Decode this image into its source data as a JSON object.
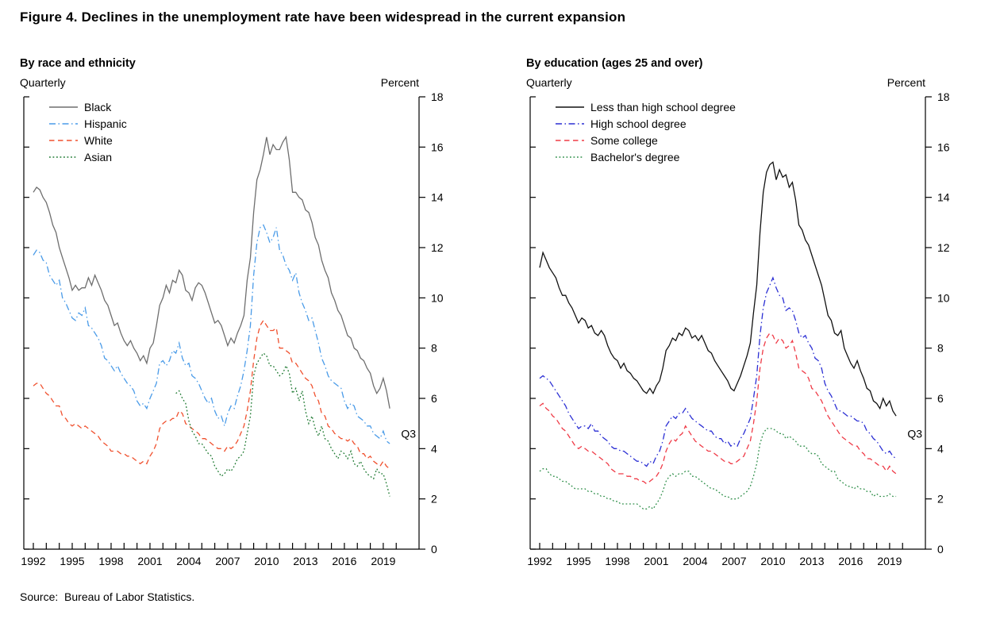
{
  "figure": {
    "title": "Figure 4. Declines in the unemployment rate have been widespread in the current expansion",
    "source": "Source:  Bureau of Labor Statistics."
  },
  "chart_data": [
    {
      "type": "line",
      "panel_title": "By race and ethnicity",
      "freq_label": "Quarterly",
      "unit_label": "Percent",
      "x_range": [
        1992,
        2020
      ],
      "x_tick_labels": [
        1992,
        1995,
        1998,
        2001,
        2004,
        2007,
        2010,
        2013,
        2016,
        2019
      ],
      "ylim": [
        0,
        18
      ],
      "y_tick_step": 2,
      "grid": false,
      "legend_position": "top-left",
      "annotation": {
        "label": "Q3",
        "value": 4.6
      },
      "series": [
        {
          "name": "Black",
          "color": "#6e6e6e",
          "style": "solid",
          "start": 1992.0,
          "step": 0.25,
          "values": [
            14.2,
            14.4,
            14.3,
            14.0,
            13.8,
            13.4,
            12.9,
            12.6,
            12.0,
            11.6,
            11.2,
            10.8,
            10.3,
            10.5,
            10.3,
            10.4,
            10.4,
            10.8,
            10.5,
            10.9,
            10.6,
            10.3,
            9.9,
            9.7,
            9.3,
            8.9,
            9.0,
            8.6,
            8.3,
            8.1,
            8.3,
            8.0,
            7.8,
            7.5,
            7.7,
            7.4,
            8.0,
            8.2,
            8.9,
            9.7,
            10.0,
            10.5,
            10.2,
            10.7,
            10.6,
            11.1,
            10.9,
            10.3,
            10.2,
            9.9,
            10.4,
            10.6,
            10.5,
            10.2,
            9.8,
            9.4,
            9.0,
            9.1,
            8.9,
            8.5,
            8.1,
            8.4,
            8.2,
            8.6,
            8.9,
            9.3,
            10.7,
            11.6,
            13.4,
            14.7,
            15.1,
            15.7,
            16.4,
            15.7,
            16.1,
            15.9,
            15.9,
            16.2,
            16.4,
            15.5,
            14.2,
            14.2,
            14.0,
            13.9,
            13.5,
            13.4,
            13.0,
            12.4,
            12.1,
            11.5,
            11.1,
            10.8,
            10.2,
            9.9,
            9.5,
            9.3,
            8.9,
            8.5,
            8.4,
            8.0,
            7.9,
            7.6,
            7.5,
            7.2,
            7.0,
            6.5,
            6.2,
            6.4,
            6.8,
            6.3,
            5.6
          ]
        },
        {
          "name": "Hispanic",
          "color": "#4a9be8",
          "style": "dashdot",
          "start": 1992.0,
          "step": 0.25,
          "values": [
            11.7,
            11.9,
            11.8,
            11.5,
            11.4,
            10.9,
            10.7,
            10.5,
            10.7,
            10.0,
            9.8,
            9.5,
            9.2,
            9.1,
            9.4,
            9.3,
            9.6,
            8.9,
            8.8,
            8.6,
            8.4,
            8.1,
            7.6,
            7.5,
            7.3,
            7.1,
            7.3,
            7.0,
            6.8,
            6.6,
            6.5,
            6.3,
            5.9,
            5.7,
            5.8,
            5.6,
            6.0,
            6.3,
            6.6,
            7.4,
            7.5,
            7.3,
            7.5,
            7.9,
            7.8,
            8.2,
            7.6,
            7.3,
            7.4,
            6.9,
            6.8,
            6.6,
            6.3,
            6.0,
            5.8,
            6.0,
            5.5,
            5.2,
            5.3,
            4.9,
            5.4,
            5.7,
            5.6,
            6.1,
            6.5,
            7.1,
            7.9,
            8.9,
            10.9,
            12.2,
            12.8,
            12.9,
            12.6,
            12.2,
            12.4,
            12.8,
            11.9,
            11.7,
            11.3,
            11.1,
            10.7,
            11.0,
            10.2,
            9.8,
            9.5,
            9.1,
            9.2,
            8.7,
            8.2,
            7.6,
            7.3,
            6.9,
            6.7,
            6.6,
            6.5,
            6.4,
            5.9,
            5.6,
            5.8,
            5.7,
            5.3,
            5.2,
            5.1,
            4.9,
            4.9,
            4.6,
            4.5,
            4.4,
            4.7,
            4.3,
            4.2
          ]
        },
        {
          "name": "White",
          "color": "#f0512f",
          "style": "dashed",
          "start": 1992.0,
          "step": 0.25,
          "values": [
            6.5,
            6.6,
            6.6,
            6.4,
            6.2,
            6.1,
            5.9,
            5.7,
            5.7,
            5.3,
            5.2,
            5.0,
            4.9,
            5.0,
            4.9,
            4.8,
            4.9,
            4.8,
            4.7,
            4.6,
            4.5,
            4.3,
            4.2,
            4.1,
            3.9,
            3.9,
            3.9,
            3.8,
            3.8,
            3.7,
            3.7,
            3.6,
            3.5,
            3.4,
            3.5,
            3.4,
            3.7,
            3.9,
            4.2,
            4.8,
            5.0,
            5.1,
            5.1,
            5.2,
            5.2,
            5.5,
            5.4,
            5.0,
            4.9,
            4.8,
            4.7,
            4.6,
            4.4,
            4.4,
            4.3,
            4.2,
            4.1,
            4.0,
            4.0,
            3.9,
            4.1,
            4.0,
            4.1,
            4.3,
            4.6,
            4.9,
            5.5,
            6.3,
            7.5,
            8.4,
            8.9,
            9.1,
            8.9,
            8.7,
            8.7,
            8.8,
            8.0,
            8.0,
            7.9,
            7.8,
            7.4,
            7.4,
            7.2,
            7.0,
            6.8,
            6.7,
            6.5,
            6.1,
            5.9,
            5.4,
            5.3,
            4.9,
            4.8,
            4.6,
            4.5,
            4.4,
            4.4,
            4.3,
            4.4,
            4.2,
            4.1,
            3.8,
            3.8,
            3.6,
            3.7,
            3.5,
            3.4,
            3.3,
            3.5,
            3.3,
            3.2
          ]
        },
        {
          "name": "Asian",
          "color": "#1f7a32",
          "style": "dotted",
          "start": 2003.0,
          "step": 0.25,
          "values": [
            6.2,
            6.3,
            6.0,
            5.8,
            5.1,
            4.7,
            4.5,
            4.2,
            4.2,
            4.0,
            3.8,
            3.7,
            3.3,
            3.1,
            2.9,
            3.0,
            3.2,
            3.1,
            3.3,
            3.6,
            3.7,
            3.9,
            4.6,
            5.3,
            6.9,
            7.4,
            7.6,
            7.8,
            7.7,
            7.3,
            7.3,
            7.1,
            6.9,
            7.0,
            7.3,
            7.0,
            6.2,
            6.4,
            5.9,
            6.3,
            5.5,
            5.0,
            5.3,
            4.8,
            4.5,
            4.9,
            4.4,
            4.3,
            4.0,
            3.8,
            3.6,
            3.9,
            3.8,
            3.6,
            3.9,
            3.4,
            3.3,
            3.5,
            3.2,
            3.0,
            2.9,
            2.8,
            3.2,
            3.0,
            3.0,
            2.6,
            2.1
          ]
        }
      ]
    },
    {
      "type": "line",
      "panel_title": "By education (ages 25 and over)",
      "freq_label": "Quarterly",
      "unit_label": "Percent",
      "x_range": [
        1992,
        2020
      ],
      "x_tick_labels": [
        1992,
        1995,
        1998,
        2001,
        2004,
        2007,
        2010,
        2013,
        2016,
        2019
      ],
      "ylim": [
        0,
        18
      ],
      "y_tick_step": 2,
      "grid": false,
      "legend_position": "top-left",
      "annotation": {
        "label": "Q3",
        "value": 4.6
      },
      "series": [
        {
          "name": "Less than high school degree",
          "color": "#111111",
          "style": "solid",
          "start": 1992.0,
          "step": 0.25,
          "values": [
            11.2,
            11.8,
            11.5,
            11.2,
            11.0,
            10.8,
            10.4,
            10.1,
            10.1,
            9.8,
            9.6,
            9.3,
            9.0,
            9.2,
            9.1,
            8.8,
            8.9,
            8.6,
            8.5,
            8.7,
            8.5,
            8.1,
            7.8,
            7.6,
            7.5,
            7.2,
            7.4,
            7.1,
            7.0,
            6.8,
            6.7,
            6.5,
            6.3,
            6.2,
            6.4,
            6.2,
            6.5,
            6.7,
            7.2,
            7.9,
            8.1,
            8.4,
            8.3,
            8.6,
            8.5,
            8.8,
            8.7,
            8.4,
            8.5,
            8.3,
            8.5,
            8.2,
            7.9,
            7.8,
            7.5,
            7.3,
            7.1,
            6.9,
            6.7,
            6.4,
            6.3,
            6.6,
            6.9,
            7.3,
            7.7,
            8.2,
            9.4,
            10.5,
            12.6,
            14.2,
            15.0,
            15.3,
            15.4,
            14.7,
            15.1,
            14.8,
            14.9,
            14.4,
            14.6,
            13.9,
            12.9,
            12.7,
            12.3,
            12.1,
            11.7,
            11.3,
            10.9,
            10.5,
            9.9,
            9.3,
            9.1,
            8.6,
            8.5,
            8.7,
            8.0,
            7.7,
            7.4,
            7.2,
            7.5,
            7.1,
            6.8,
            6.4,
            6.3,
            5.9,
            5.8,
            5.6,
            6.0,
            5.7,
            5.9,
            5.5,
            5.3
          ]
        },
        {
          "name": "High school degree",
          "color": "#2b2fd4",
          "style": "dashdot",
          "start": 1992.0,
          "step": 0.25,
          "values": [
            6.8,
            6.9,
            6.8,
            6.7,
            6.5,
            6.3,
            6.1,
            5.9,
            5.7,
            5.4,
            5.2,
            5.0,
            4.8,
            4.9,
            4.9,
            4.8,
            5.0,
            4.7,
            4.7,
            4.5,
            4.4,
            4.3,
            4.1,
            4.0,
            4.0,
            3.9,
            3.9,
            3.8,
            3.7,
            3.6,
            3.5,
            3.5,
            3.4,
            3.3,
            3.5,
            3.4,
            3.7,
            3.9,
            4.3,
            4.9,
            5.1,
            5.3,
            5.2,
            5.4,
            5.4,
            5.6,
            5.4,
            5.2,
            5.1,
            5.0,
            4.9,
            4.8,
            4.7,
            4.7,
            4.5,
            4.4,
            4.4,
            4.2,
            4.3,
            4.1,
            4.2,
            4.1,
            4.4,
            4.6,
            4.9,
            5.2,
            6.0,
            6.9,
            8.5,
            9.6,
            10.2,
            10.5,
            10.8,
            10.4,
            10.1,
            10.0,
            9.5,
            9.6,
            9.5,
            9.1,
            8.6,
            8.4,
            8.5,
            8.2,
            8.0,
            7.6,
            7.5,
            7.2,
            6.6,
            6.3,
            6.1,
            5.8,
            5.5,
            5.5,
            5.4,
            5.3,
            5.3,
            5.2,
            5.1,
            5.1,
            5.0,
            4.7,
            4.6,
            4.4,
            4.3,
            4.1,
            3.9,
            3.8,
            3.9,
            3.7,
            3.6
          ]
        },
        {
          "name": "Some college",
          "color": "#ef3b47",
          "style": "dashed",
          "start": 1992.0,
          "step": 0.25,
          "values": [
            5.7,
            5.8,
            5.6,
            5.5,
            5.3,
            5.2,
            5.0,
            4.8,
            4.7,
            4.5,
            4.3,
            4.1,
            4.0,
            4.1,
            4.0,
            3.9,
            3.9,
            3.8,
            3.7,
            3.6,
            3.5,
            3.4,
            3.2,
            3.1,
            3.0,
            3.0,
            3.0,
            2.9,
            2.9,
            2.8,
            2.8,
            2.7,
            2.7,
            2.6,
            2.7,
            2.8,
            2.9,
            3.1,
            3.4,
            3.9,
            4.2,
            4.4,
            4.3,
            4.5,
            4.6,
            4.9,
            4.7,
            4.5,
            4.3,
            4.2,
            4.1,
            4.0,
            3.9,
            3.9,
            3.8,
            3.7,
            3.6,
            3.5,
            3.5,
            3.4,
            3.4,
            3.5,
            3.6,
            3.7,
            4.0,
            4.3,
            5.0,
            5.9,
            7.2,
            8.0,
            8.4,
            8.6,
            8.5,
            8.2,
            8.4,
            8.3,
            8.0,
            8.1,
            8.3,
            7.8,
            7.2,
            7.1,
            7.0,
            6.8,
            6.4,
            6.3,
            6.1,
            5.9,
            5.6,
            5.3,
            5.1,
            4.9,
            4.7,
            4.5,
            4.4,
            4.3,
            4.2,
            4.1,
            4.1,
            3.9,
            3.8,
            3.6,
            3.6,
            3.5,
            3.4,
            3.3,
            3.3,
            3.1,
            3.3,
            3.1,
            3.0
          ]
        },
        {
          "name": "Bachelor's degree",
          "color": "#2f8f4a",
          "style": "dotted",
          "start": 1992.0,
          "step": 0.25,
          "values": [
            3.1,
            3.2,
            3.2,
            3.0,
            2.9,
            2.9,
            2.8,
            2.7,
            2.7,
            2.6,
            2.5,
            2.4,
            2.4,
            2.4,
            2.4,
            2.3,
            2.3,
            2.2,
            2.2,
            2.1,
            2.1,
            2.0,
            2.0,
            1.9,
            1.9,
            1.8,
            1.8,
            1.8,
            1.8,
            1.8,
            1.8,
            1.7,
            1.6,
            1.6,
            1.7,
            1.6,
            1.8,
            2.0,
            2.3,
            2.7,
            2.9,
            3.0,
            2.9,
            3.0,
            3.0,
            3.1,
            3.1,
            2.9,
            2.9,
            2.8,
            2.7,
            2.6,
            2.5,
            2.4,
            2.4,
            2.3,
            2.2,
            2.1,
            2.1,
            2.0,
            2.0,
            2.0,
            2.1,
            2.2,
            2.3,
            2.5,
            2.9,
            3.4,
            4.2,
            4.6,
            4.8,
            4.8,
            4.8,
            4.7,
            4.6,
            4.6,
            4.4,
            4.5,
            4.4,
            4.3,
            4.1,
            4.1,
            4.1,
            3.9,
            3.8,
            3.8,
            3.7,
            3.4,
            3.3,
            3.2,
            3.1,
            3.1,
            2.8,
            2.7,
            2.6,
            2.5,
            2.5,
            2.4,
            2.5,
            2.4,
            2.4,
            2.3,
            2.3,
            2.1,
            2.2,
            2.1,
            2.1,
            2.1,
            2.2,
            2.1,
            2.1
          ]
        }
      ]
    }
  ]
}
